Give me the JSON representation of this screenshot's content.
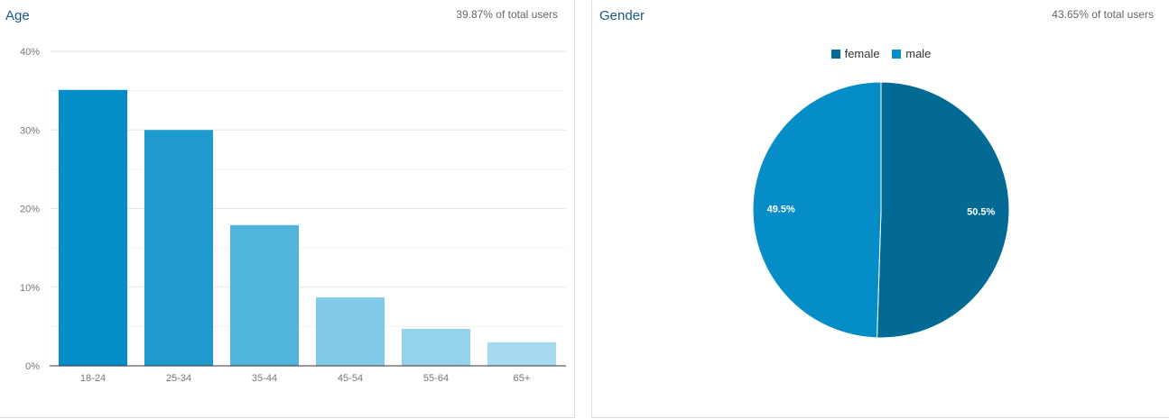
{
  "age_panel": {
    "title": "Age",
    "subtitle": "39.87% of total users"
  },
  "gender_panel": {
    "title": "Gender",
    "subtitle": "43.65% of total users"
  },
  "chart_data": [
    {
      "type": "bar",
      "title": "Age",
      "categories": [
        "18-24",
        "25-34",
        "35-44",
        "45-54",
        "55-64",
        "65+"
      ],
      "values": [
        35.1,
        30.0,
        17.9,
        8.7,
        4.7,
        3.0
      ],
      "colors": [
        "#058dc7",
        "#1f9acf",
        "#50b4dc",
        "#82cbe8",
        "#95d3ed",
        "#a5daf0"
      ],
      "yticks": [
        "0%",
        "10%",
        "20%",
        "30%",
        "40%"
      ],
      "ylim": [
        0,
        40
      ],
      "grid": true
    },
    {
      "type": "pie",
      "title": "Gender",
      "legend_position": "top",
      "slices": [
        {
          "label": "female",
          "value": 50.5,
          "display": "50.5%",
          "color": "#036a96"
        },
        {
          "label": "male",
          "value": 49.5,
          "display": "49.5%",
          "color": "#058dc7"
        }
      ]
    }
  ]
}
